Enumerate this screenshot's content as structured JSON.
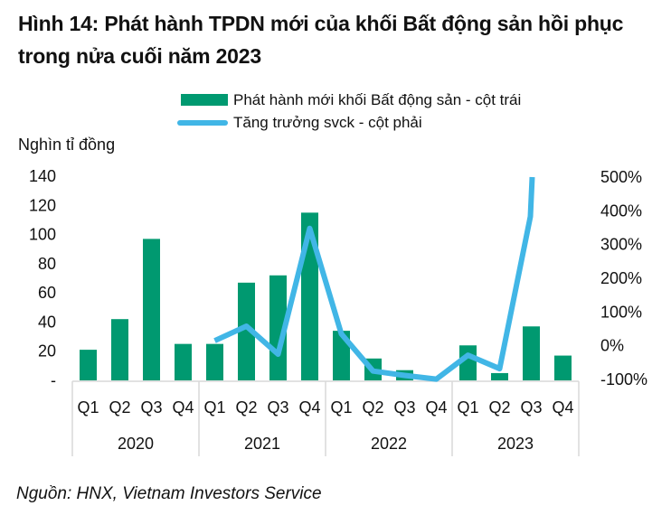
{
  "title": "Hình 14: Phát hành TPDN mới của khối Bất động sản hồi phục trong nửa cuối năm 2023",
  "unit_label": "Nghìn tỉ đồng",
  "source": "Nguồn: HNX, Vietnam Investors Service",
  "colors": {
    "bar": "#009970",
    "line": "#41b6e6",
    "axis": "#d9d9d9"
  },
  "chart_data": {
    "type": "bar",
    "title": "Hình 14: Phát hành TPDN mới của khối Bất động sản hồi phục trong nửa cuối năm 2023",
    "ylabel": "Nghìn tỉ đồng",
    "categories": [
      "Q1",
      "Q2",
      "Q3",
      "Q4",
      "Q1",
      "Q2",
      "Q3",
      "Q4",
      "Q1",
      "Q2",
      "Q3",
      "Q4",
      "Q1",
      "Q2",
      "Q3",
      "Q4"
    ],
    "groups": [
      {
        "label": "2020",
        "span": 4
      },
      {
        "label": "2021",
        "span": 4
      },
      {
        "label": "2022",
        "span": 4
      },
      {
        "label": "2023",
        "span": 4
      }
    ],
    "series": [
      {
        "name": "Phát hành mới khối Bất động sản - cột trái",
        "type": "bar",
        "axis": "left",
        "values": [
          21,
          42,
          97,
          25,
          25,
          67,
          72,
          115,
          34,
          15,
          7,
          0,
          24,
          5,
          37,
          17
        ]
      },
      {
        "name": "Tăng trưởng svck - cột phải",
        "type": "line",
        "axis": "right",
        "values": [
          null,
          null,
          null,
          null,
          15,
          58,
          -25,
          348,
          35,
          -75,
          -88,
          -99,
          -28,
          -68,
          500,
          null
        ],
        "note": "2023 Q3 value exceeds axis maximum (line clipped at 500%); intermediate visible bend near 383%"
      }
    ],
    "y_left": {
      "min": 0,
      "max": 140,
      "ticks": [
        0,
        20,
        40,
        60,
        80,
        100,
        120,
        140
      ],
      "tick_labels": [
        "-",
        "20",
        "40",
        "60",
        "80",
        "100",
        "120",
        "140"
      ]
    },
    "y_right": {
      "min": -100,
      "max": 500,
      "ticks": [
        -100,
        0,
        100,
        200,
        300,
        400,
        500
      ],
      "tick_labels": [
        "-100%",
        "0%",
        "100%",
        "200%",
        "300%",
        "400%",
        "500%"
      ]
    },
    "legend_position": "top",
    "grid": false
  }
}
